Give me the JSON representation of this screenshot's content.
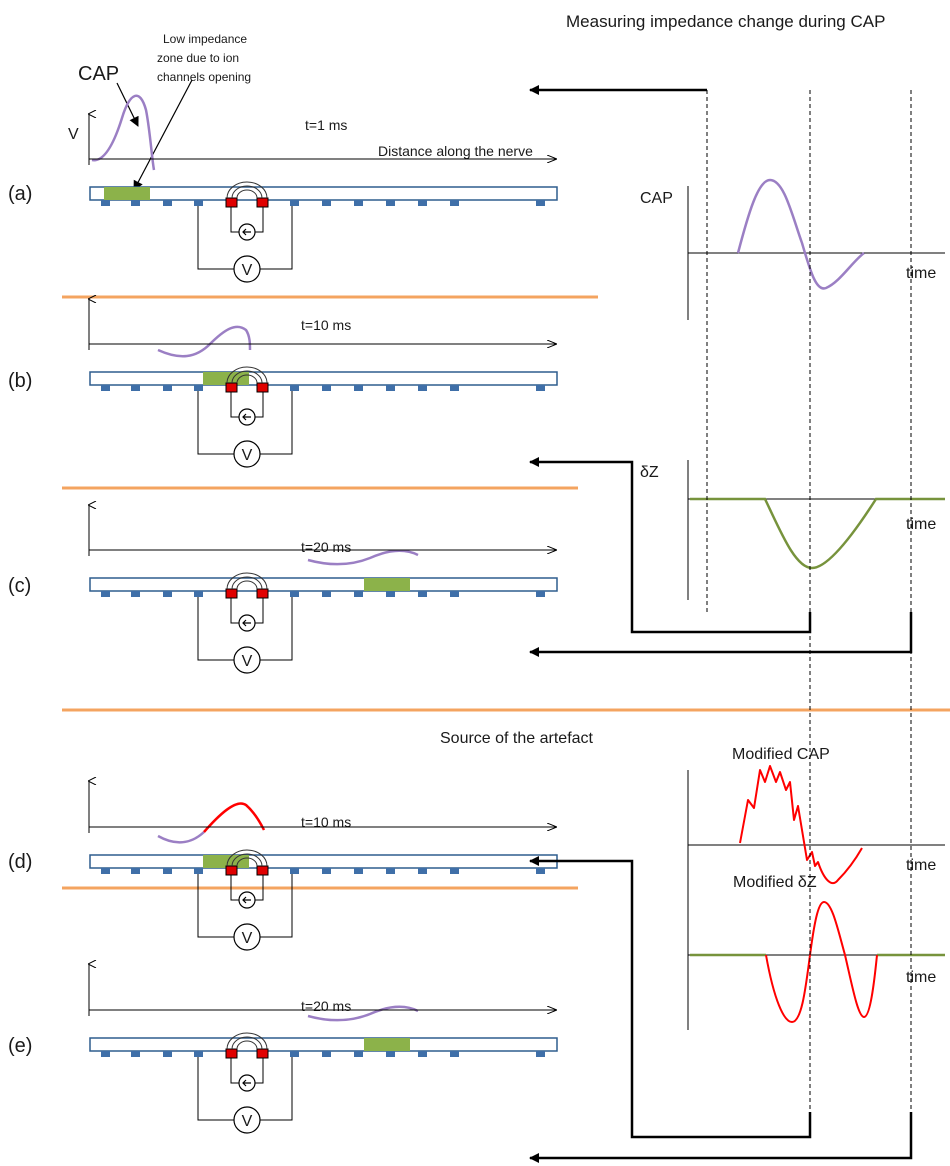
{
  "title": "Measuring impedance change during CAP",
  "artefact_title": "Source of the artefact",
  "annotations": {
    "cap": "CAP",
    "low_impedance_line1": "Low impedance",
    "low_impedance_line2": "zone due to ion",
    "low_impedance_line3": "channels opening",
    "v_axis": "V",
    "distance": "Distance along the nerve"
  },
  "panels": [
    {
      "id": "a",
      "label": "(a)",
      "time": "t=1 ms",
      "voltmeter": "V"
    },
    {
      "id": "b",
      "label": "(b)",
      "time": "t=10 ms",
      "voltmeter": "V"
    },
    {
      "id": "c",
      "label": "(c)",
      "time": "t=20 ms",
      "voltmeter": "V"
    },
    {
      "id": "d",
      "label": "(d)",
      "time": "t=10 ms",
      "voltmeter": "V"
    },
    {
      "id": "e",
      "label": "(e)",
      "time": "t=20 ms",
      "voltmeter": "V"
    }
  ],
  "plots": {
    "cap": {
      "ylabel": "CAP",
      "xlabel": "time"
    },
    "dz": {
      "ylabel": "δZ",
      "xlabel": "time"
    },
    "mod_cap": {
      "title": "Modified CAP",
      "xlabel": "time"
    },
    "mod_dz": {
      "title": "Modified δZ",
      "xlabel": "time"
    }
  },
  "colors": {
    "cap_wave": "#9b7fc4",
    "dz_wave": "#77933c",
    "artefact_wave": "#ff0000",
    "separator": "#f4a460",
    "nerve_border": "#2e5d8e",
    "electrode": "#3f6fa8",
    "impedance_zone": "#8cb24a",
    "contact": "#e00000"
  }
}
